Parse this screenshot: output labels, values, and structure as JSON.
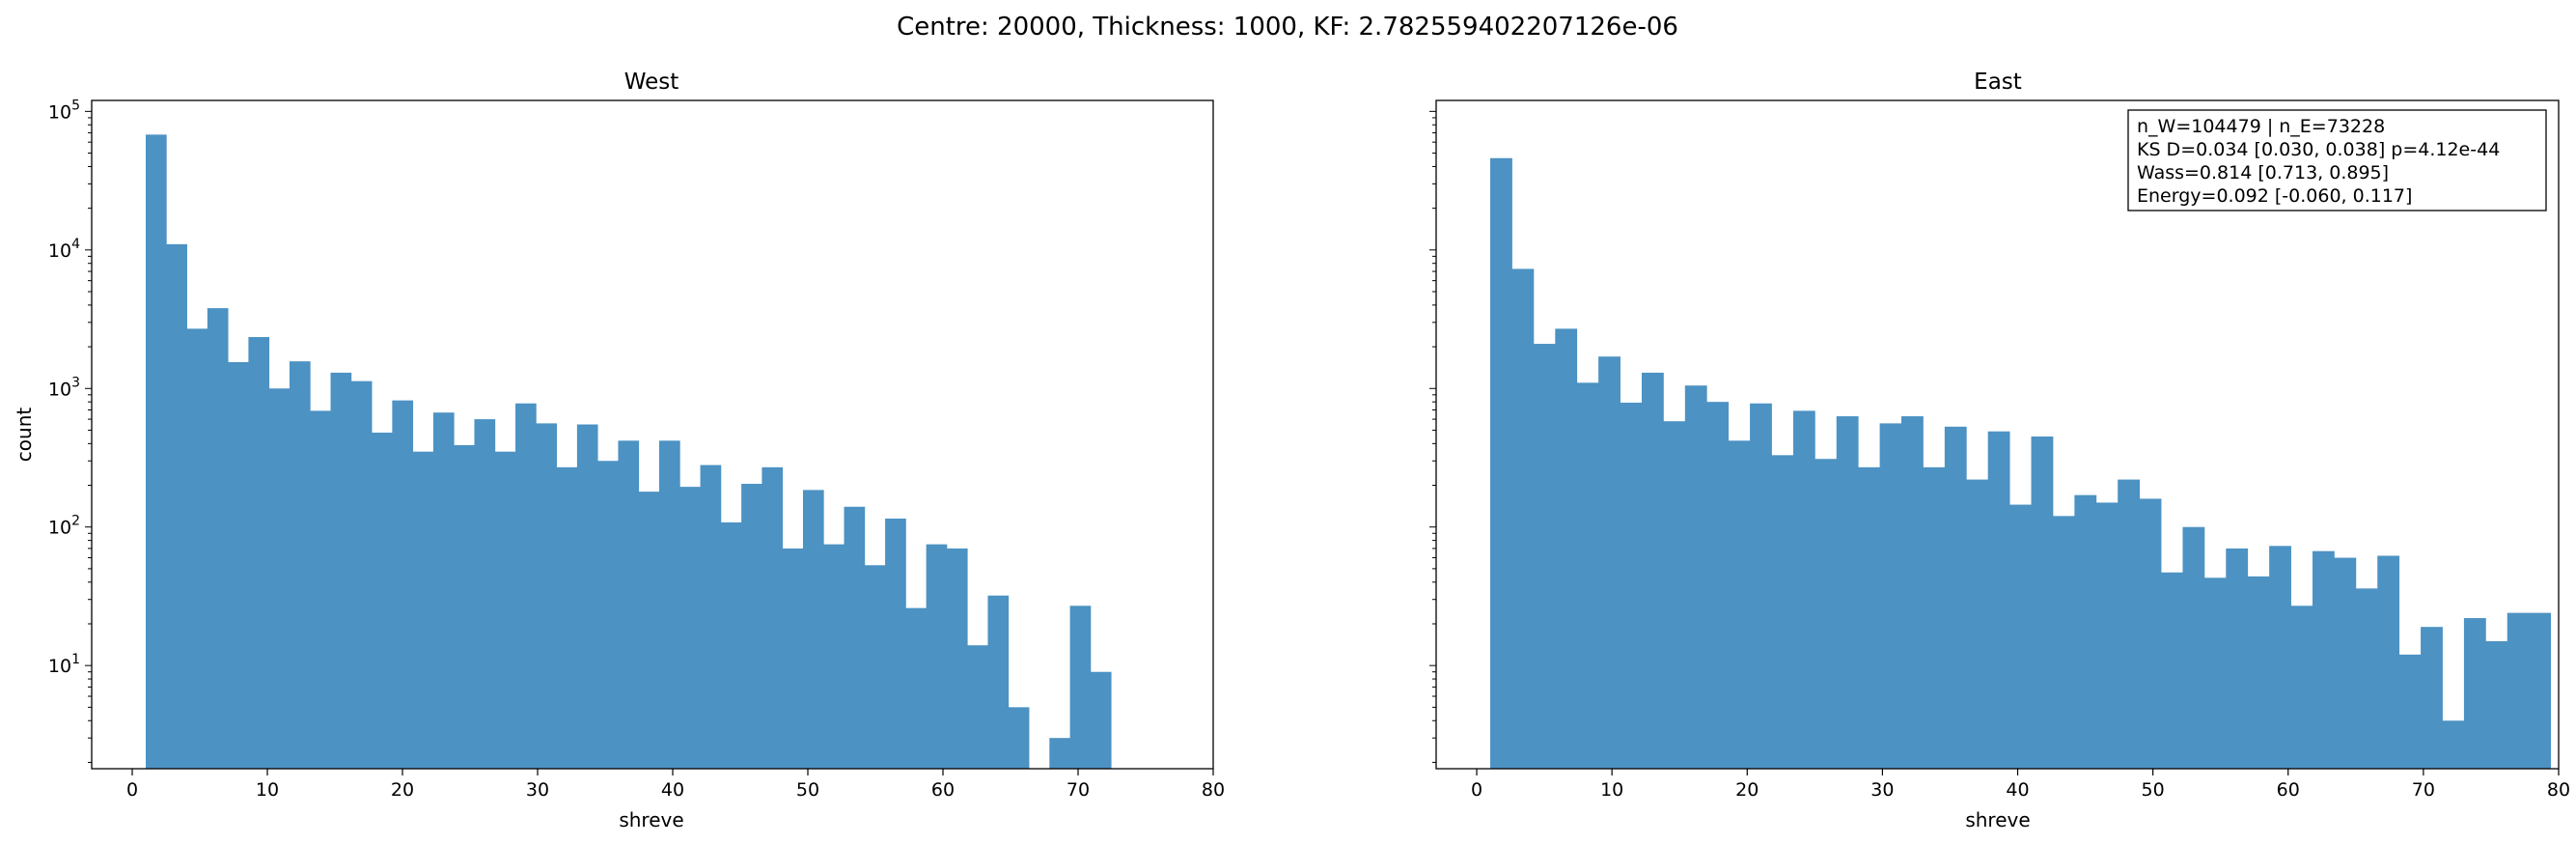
{
  "suptitle": "Centre: 20000, Thickness: 1000, KF: 2.782559402207126e-06",
  "chart_data": [
    {
      "type": "bar",
      "title": "West",
      "xlabel": "shreve",
      "ylabel": "count",
      "yscale": "log",
      "xlim": [
        -3,
        80
      ],
      "ylim": [
        1.8,
        120000
      ],
      "xticks": [
        0,
        10,
        20,
        30,
        40,
        50,
        60,
        70,
        80
      ],
      "yticks": [
        {
          "value": 10,
          "base": "10",
          "exp": "1"
        },
        {
          "value": 100,
          "base": "10",
          "exp": "2"
        },
        {
          "value": 1000,
          "base": "10",
          "exp": "3"
        },
        {
          "value": 10000,
          "base": "10",
          "exp": "4"
        },
        {
          "value": 100000,
          "base": "10",
          "exp": "5"
        }
      ],
      "bin_start": 1,
      "bin_width": 1.52,
      "bar_color": "#4c92c3",
      "counts": [
        68000,
        11000,
        2700,
        3800,
        1550,
        2350,
        1000,
        1570,
        690,
        1300,
        1130,
        480,
        820,
        350,
        670,
        390,
        600,
        350,
        780,
        560,
        270,
        550,
        300,
        420,
        180,
        420,
        195,
        280,
        108,
        205,
        270,
        70,
        185,
        75,
        140,
        53,
        115,
        26,
        75,
        70,
        14,
        32,
        5,
        0,
        3,
        27,
        9
      ]
    },
    {
      "type": "bar",
      "title": "East",
      "xlabel": "shreve",
      "ylabel": "",
      "yscale": "log",
      "xlim": [
        -3,
        80
      ],
      "ylim": [
        1.8,
        120000
      ],
      "xticks": [
        0,
        10,
        20,
        30,
        40,
        50,
        60,
        70,
        80
      ],
      "bin_start": 1,
      "bin_width": 1.6,
      "bar_color": "#4c92c3",
      "counts": [
        46000,
        7300,
        2100,
        2700,
        1100,
        1700,
        790,
        1300,
        580,
        1050,
        800,
        420,
        780,
        330,
        690,
        310,
        630,
        270,
        560,
        630,
        270,
        530,
        220,
        490,
        145,
        450,
        120,
        170,
        150,
        220,
        160,
        47,
        100,
        43,
        70,
        44,
        73,
        27,
        67,
        60,
        36,
        62,
        12,
        19,
        4,
        22,
        15,
        24,
        24
      ],
      "stats_box": [
        "n_W=104479 | n_E=73228",
        "KS D=0.034 [0.030, 0.038]  p=4.12e-44",
        "Wass=0.814 [0.713, 0.895]",
        "Energy=0.092 [-0.060, 0.117]"
      ]
    }
  ]
}
